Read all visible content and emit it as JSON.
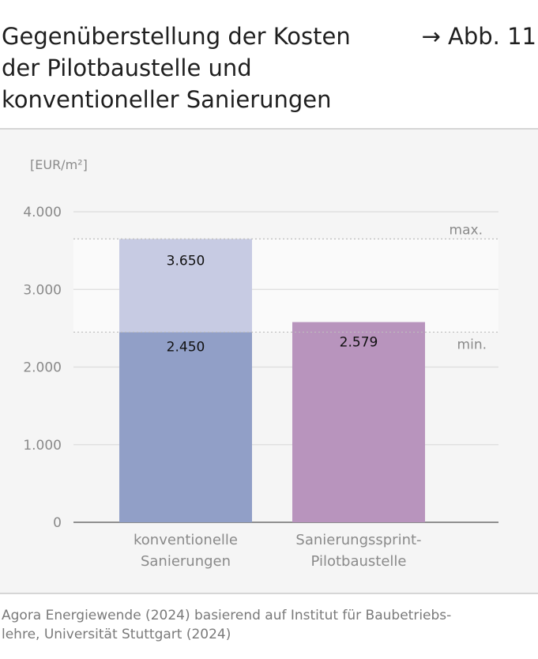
{
  "header": {
    "title": "Gegenüberstellung der Kosten\nder Pilotbaustelle und\nkonventioneller Sanierungen",
    "figure_ref": "→ Abb. 11"
  },
  "chart_data": {
    "type": "bar",
    "unit_label": "[EUR/m²]",
    "ylim": [
      0,
      4000
    ],
    "y_ticks": [
      {
        "value": 0,
        "label": "0"
      },
      {
        "value": 1000,
        "label": "1.000"
      },
      {
        "value": 2000,
        "label": "2.000"
      },
      {
        "value": 3000,
        "label": "3.000"
      },
      {
        "value": 4000,
        "label": "4.000"
      }
    ],
    "categories": [
      "konventionelle\nSanierungen",
      "Sanierungssprint-\nPilotbaustelle"
    ],
    "bars": [
      {
        "category": "konventionelle\nSanierungen",
        "min": 2450,
        "max": 3650,
        "min_label": "2.450",
        "max_label": "3.650",
        "color_base": "#919fc7",
        "color_range": "#c7cbe3"
      },
      {
        "category": "Sanierungssprint-\nPilotbaustelle",
        "value": 2579,
        "value_label": "2.579",
        "color_base": "#b894bd"
      }
    ],
    "band": {
      "min": 2450,
      "max": 3650,
      "min_label": "min.",
      "max_label": "max."
    },
    "grid": true
  },
  "source": "Agora Energiewende (2024) basierend auf Institut für Baubetriebs-\nlehre, Universität Stuttgart (2024)"
}
